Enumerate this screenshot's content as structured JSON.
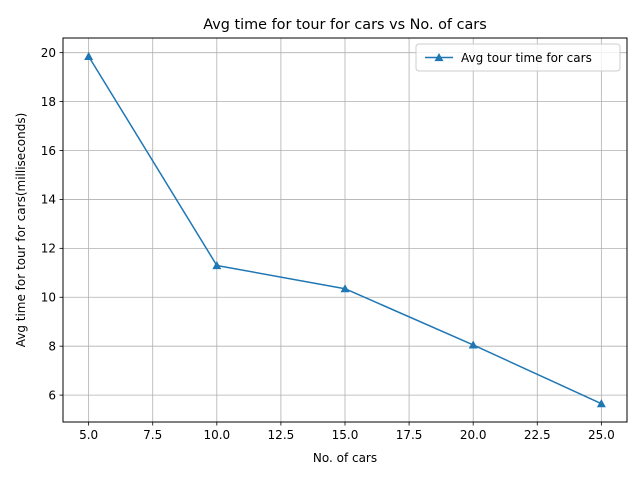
{
  "chart_data": {
    "type": "line",
    "title": "Avg time for tour for cars vs No. of cars",
    "xlabel": "No. of cars",
    "ylabel": "Avg time for tour for cars(milliseconds)",
    "xlim": [
      4.0,
      26.0
    ],
    "ylim": [
      4.9,
      20.6
    ],
    "xticks": [
      5.0,
      7.5,
      10.0,
      12.5,
      15.0,
      17.5,
      20.0,
      22.5,
      25.0
    ],
    "xtick_labels": [
      "5.0",
      "7.5",
      "10.0",
      "12.5",
      "15.0",
      "17.5",
      "20.0",
      "22.5",
      "25.0"
    ],
    "yticks": [
      6,
      8,
      10,
      12,
      14,
      16,
      18,
      20
    ],
    "ytick_labels": [
      "6",
      "8",
      "10",
      "12",
      "14",
      "16",
      "18",
      "20"
    ],
    "grid": true,
    "legend_position": "top-right",
    "series": [
      {
        "name": "Avg tour time for cars",
        "color": "#1f77b4",
        "marker": "triangle-up",
        "x": [
          5,
          10,
          15,
          20,
          25
        ],
        "y": [
          19.85,
          11.3,
          10.35,
          8.05,
          5.65
        ]
      }
    ]
  }
}
